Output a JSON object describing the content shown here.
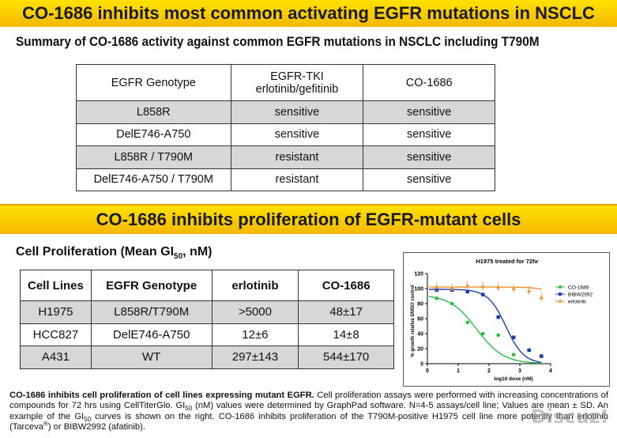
{
  "banner_top": "CO-1686 inhibits most common activating EGFR mutations in NSCLC",
  "summary": {
    "heading": "Summary of CO-1686 activity against common EGFR mutations in NSCLC including T790M",
    "header": {
      "col1": "EGFR Genotype",
      "col2_line1": "EGFR-TKI",
      "col2_line2": "erlotinib/gefitinib",
      "col3": "CO-1686"
    },
    "rows": [
      {
        "genotype": "L858R",
        "tki": "sensitive",
        "co1686": "sensitive"
      },
      {
        "genotype": "DelE746-A750",
        "tki": "sensitive",
        "co1686": "sensitive"
      },
      {
        "genotype": "L858R / T790M",
        "tki": "resistant",
        "co1686": "sensitive"
      },
      {
        "genotype": "DelE746-A750 / T790M",
        "tki": "resistant",
        "co1686": "sensitive"
      }
    ]
  },
  "banner_mid": "CO-1686 inhibits proliferation of EGFR-mutant  cells",
  "proliferation": {
    "heading_pre": "Cell Proliferation (Mean GI",
    "heading_sub": "50",
    "heading_post": ", nM)",
    "header": [
      "Cell Lines",
      "EGFR Genotype",
      "erlotinib",
      "CO-1686"
    ],
    "rows": [
      [
        "H1975",
        "L858R/T790M",
        ">5000",
        "48±17"
      ],
      [
        "HCC827",
        "DelE746-A750",
        "12±6",
        "14±8"
      ],
      [
        "A431",
        "WT",
        "297±143",
        "544±170"
      ]
    ]
  },
  "chart_data": {
    "type": "scatter",
    "title": "H1975 treated for 72hr",
    "xlabel": "log10 dose (nM)",
    "ylabel": "% growth relative DMSO control",
    "xlim": [
      0,
      4
    ],
    "ylim": [
      0,
      120
    ],
    "xticks": [
      0,
      1,
      2,
      3,
      4
    ],
    "yticks": [
      0,
      20,
      40,
      60,
      80,
      100,
      120
    ],
    "legend_position": "top-right",
    "series": [
      {
        "name": "CO-1686",
        "color": "#2db84a",
        "marker": "circle",
        "x": [
          0.3,
          0.8,
          1.3,
          1.8,
          2.3,
          2.8
        ],
        "y": [
          87,
          80,
          55,
          40,
          38,
          12
        ],
        "fit": {
          "top": 92,
          "bottom": 0,
          "logec50": 1.6,
          "hill": 1.0
        }
      },
      {
        "name": "BIBW2992",
        "color": "#1f3fb0",
        "marker": "square",
        "x": [
          0.3,
          0.8,
          1.3,
          1.8,
          2.3,
          2.8,
          3.3,
          3.7
        ],
        "y": [
          98,
          98,
          96,
          92,
          62,
          35,
          18,
          10
        ],
        "fit": {
          "top": 99,
          "bottom": 0,
          "logec50": 2.55,
          "hill": 1.5
        }
      },
      {
        "name": "erlotinib",
        "color": "#f0902a",
        "marker": "triangle",
        "x": [
          0.3,
          0.8,
          1.3,
          1.8,
          2.3,
          2.8,
          3.3,
          3.7
        ],
        "y": [
          102,
          100,
          104,
          103,
          102,
          100,
          97,
          88
        ],
        "fit": {
          "top": 102,
          "bottom": 0,
          "logec50": 4.7,
          "hill": 1.5
        }
      }
    ]
  },
  "caption": {
    "bold_lead": "CO-1686 inhibits cell proliferation of cell lines expressing mutant EGFR.",
    "text1": " Cell proliferation assays were performed with increasing concentrations of compounds for 72 hrs using CellTiterGlo. GI",
    "sub1": "50",
    "text2": " (nM) values were determined by GraphPad software.  N=4-5 assays/cell line; Values are mean ± SD. An example of the GI",
    "sub2": "50",
    "text3": " curves is shown on the right. CO-1686 inhibits proliferation of the T790M-positive H1975 cell line more potently than erlotinib (Tarceva",
    "sup1": "®",
    "text4": ") or BIBW2992 (afatinib)."
  },
  "watermark": "Discuz!"
}
